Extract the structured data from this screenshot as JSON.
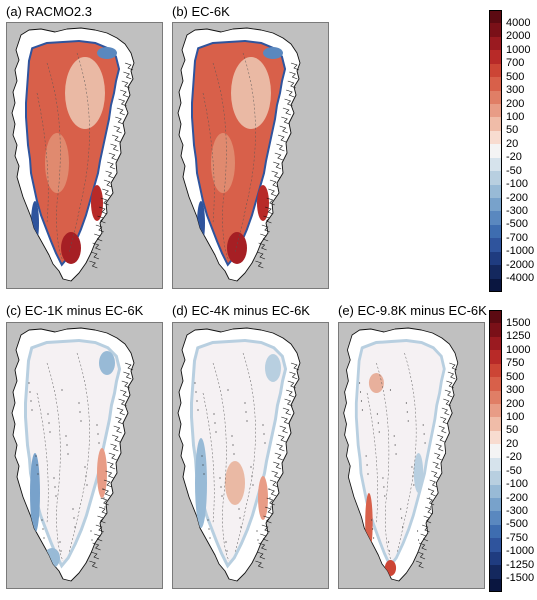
{
  "panels": [
    {
      "id": "a",
      "title": "(a) RACMO2.3",
      "style": "abs"
    },
    {
      "id": "b",
      "title": "(b) EC-6K",
      "style": "abs"
    },
    {
      "id": "c",
      "title": "(c) EC-1K minus EC-6K",
      "style": "diff_c"
    },
    {
      "id": "d",
      "title": "(d) EC-4K minus EC-6K",
      "style": "diff_d"
    },
    {
      "id": "e",
      "title": "(e) EC-9.8K minus EC-6K",
      "style": "diff_e"
    }
  ],
  "colorbar_top": {
    "labels": [
      "4000",
      "2000",
      "1000",
      "700",
      "500",
      "300",
      "200",
      "100",
      "50",
      "20",
      "-20",
      "-50",
      "-100",
      "-200",
      "-300",
      "-500",
      "-700",
      "-1000",
      "-2000",
      "-4000"
    ],
    "colors": [
      "#5c0a12",
      "#7a1018",
      "#9a1a20",
      "#b82a28",
      "#cc4535",
      "#d8604a",
      "#e07e66",
      "#e89c86",
      "#f0bca8",
      "#f8dcd0",
      "#f4f4f4",
      "#d6e3ec",
      "#b8cfe0",
      "#98bad6",
      "#78a2cb",
      "#5a88bf",
      "#3e6db0",
      "#2f549d",
      "#1f3c80",
      "#14285e",
      "#0a1640"
    ]
  },
  "colorbar_bottom": {
    "labels": [
      "1500",
      "1250",
      "1000",
      "750",
      "500",
      "300",
      "200",
      "100",
      "50",
      "20",
      "-20",
      "-50",
      "-100",
      "-200",
      "-300",
      "-500",
      "-750",
      "-1000",
      "-1250",
      "-1500"
    ],
    "colors": [
      "#5c0a12",
      "#7a1018",
      "#9a1a20",
      "#b82a28",
      "#cc4535",
      "#d8604a",
      "#e07e66",
      "#e89c86",
      "#f0bca8",
      "#f8dcd0",
      "#f4f4f4",
      "#d6e3ec",
      "#b8cfe0",
      "#98bad6",
      "#78a2cb",
      "#5a88bf",
      "#3e6db0",
      "#2f549d",
      "#1f3c80",
      "#14285e",
      "#0a1640"
    ]
  }
}
